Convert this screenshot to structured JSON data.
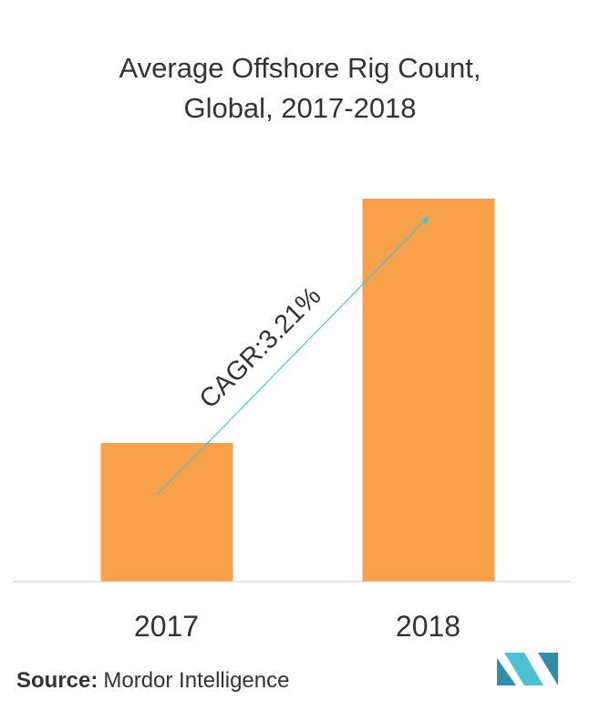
{
  "chart_data": {
    "type": "bar",
    "title": [
      "Average Offshore Rig Count,",
      "Global, 2017-2018"
    ],
    "categories": [
      "2017",
      "2018"
    ],
    "values": [
      152,
      420
    ],
    "color": "#f9a04a",
    "ylim": [
      0,
      440
    ],
    "annotation": "CAGR:3.21%",
    "source": {
      "label": "Source:",
      "text": "Mordor Intelligence"
    }
  }
}
